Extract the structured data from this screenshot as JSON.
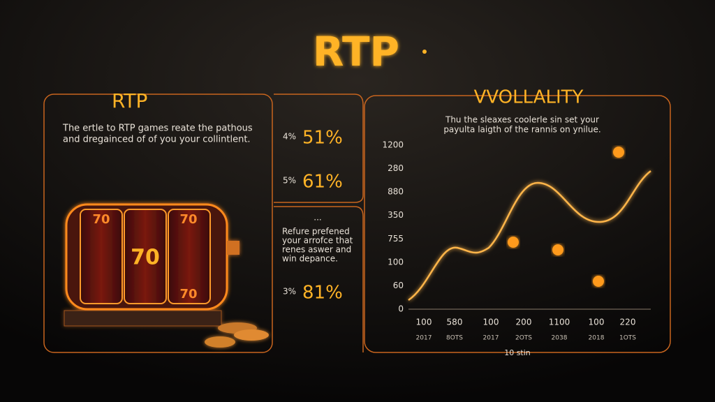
{
  "header": {
    "title": "RTP"
  },
  "rtp_panel": {
    "title": "RTP",
    "text": [
      "The ertle to RTP games reate the pathous",
      "and dregainced of of you your collintlent."
    ]
  },
  "stats": {
    "items": [
      {
        "small": "4%",
        "big": "51%"
      },
      {
        "small": "5%",
        "big": "61%"
      }
    ],
    "note": {
      "dots": "...",
      "lines": [
        "Refure prefened",
        "your arrofce that",
        "renes aswer and",
        "win depance."
      ]
    },
    "bottom": {
      "small": "3%",
      "big": "81%"
    }
  },
  "volatility_panel": {
    "title": "VVOLLALITY",
    "text": [
      "Thu the sleaxes coolerle sin set your",
      "payulta laigth of the rannis on ynilue."
    ],
    "y_labels": [
      "1200",
      "280",
      "880",
      "350",
      "755",
      "100",
      "60",
      "0"
    ],
    "x_labels": [
      "100",
      "580",
      "100",
      "200",
      "1100",
      "100",
      "220"
    ],
    "x_sublabels": [
      "2017",
      "8OTS",
      "2017",
      "2OTS",
      "2038",
      "2018",
      "1OTS"
    ],
    "x_title": "10 stin"
  }
}
